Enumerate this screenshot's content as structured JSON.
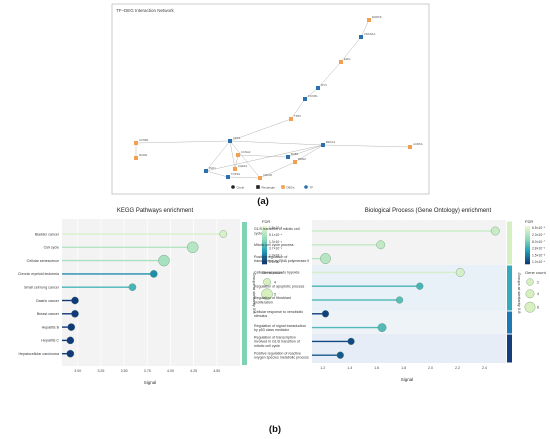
{
  "panel_a": {
    "title": "TF–DEG Interaction Network",
    "caption": "(a)",
    "legend": [
      {
        "label": "Circle",
        "shape": "circle-dark"
      },
      {
        "label": "Rectangle",
        "shape": "square-dark"
      },
      {
        "label": "DEGs",
        "shape": "square-orange"
      },
      {
        "label": "TF",
        "shape": "circle-blue"
      }
    ],
    "colors": {
      "deg": "#f0a050",
      "tf": "#2a6fb0",
      "edge": "#b5b5b5"
    },
    "nodes": [
      {
        "id": "n1",
        "label": "MAPK9",
        "type": "deg"
      },
      {
        "id": "n2",
        "label": "CDKN1A",
        "type": "tf"
      },
      {
        "id": "n3",
        "label": "E2F1",
        "type": "deg"
      },
      {
        "id": "n4",
        "label": "MYC",
        "type": "tf"
      },
      {
        "id": "n5",
        "label": "FOXM1",
        "type": "tf"
      },
      {
        "id": "n6",
        "label": "TP53",
        "type": "deg"
      },
      {
        "id": "n7",
        "label": "CDK1",
        "type": "tf"
      },
      {
        "id": "n8",
        "label": "CCNB1",
        "type": "deg"
      },
      {
        "id": "n9",
        "label": "MCM2",
        "type": "deg"
      },
      {
        "id": "n10",
        "label": "BRCA1",
        "type": "tf"
      },
      {
        "id": "n11",
        "label": "AURKA",
        "type": "deg"
      },
      {
        "id": "n12",
        "label": "CCNA2",
        "type": "deg"
      },
      {
        "id": "n13",
        "label": "PLK1",
        "type": "tf"
      },
      {
        "id": "n14",
        "label": "CHEK1",
        "type": "deg"
      },
      {
        "id": "n15",
        "label": "TOP2A",
        "type": "tf"
      },
      {
        "id": "n16",
        "label": "BUB1",
        "type": "tf"
      },
      {
        "id": "n17",
        "label": "CDC20",
        "type": "deg"
      },
      {
        "id": "n18",
        "label": "RRM2",
        "type": "deg"
      }
    ]
  },
  "panel_b_caption": "(b)",
  "chart_data": [
    {
      "type": "scatter",
      "title": "KEGG Pathways enrichment",
      "xlabel": "Signal",
      "xlim": [
        2.83,
        4.75
      ],
      "xticks": [
        "3.00",
        "3.25",
        "3.50",
        "3.75",
        "4.00",
        "4.25",
        "4.50"
      ],
      "categories": [
        "Bladder cancer",
        "Cell cycle",
        "Cellular senescence",
        "Chronic myeloid leukemia",
        "Small cell lung cancer",
        "Gastric cancer",
        "Breast cancer",
        "Hepatitis B",
        "Hepatitis C",
        "Hepatocellular carcinoma"
      ],
      "signal": [
        4.57,
        4.24,
        3.93,
        3.82,
        3.59,
        2.97,
        2.97,
        2.93,
        2.92,
        2.92
      ],
      "gene_count": [
        4,
        5,
        5,
        4,
        4,
        4,
        4,
        4,
        4,
        4
      ],
      "fdr_level": [
        0.06,
        0.2,
        0.25,
        0.72,
        0.55,
        1.0,
        1.0,
        1.0,
        1.0,
        1.0
      ],
      "legend_fdr": {
        "title": "FDR",
        "labels": [
          "1.9×10⁻⁴",
          "5.1×10⁻⁴",
          "1.3×10⁻³",
          "3.7×10⁻³",
          "1.0×10⁻²",
          "2.6×10⁻²"
        ]
      },
      "legend_size": {
        "title": "Gene count",
        "labels": [
          "4",
          "5"
        ]
      },
      "group_label": "Groups at similarity 0.8"
    },
    {
      "type": "scatter",
      "title": "Biological Process (Gene Ontology) enrichment",
      "xlabel": "Signal",
      "xlim": [
        1.12,
        2.56
      ],
      "xticks": [
        "1.2",
        "1.4",
        "1.6",
        "1.8",
        "2.0",
        "2.2",
        "2.4"
      ],
      "categories": [
        "G1/S transition of mitotic cell cycle",
        "Mitotic cell cycle process",
        "Positive regulation of transcription by RNA polymerase II",
        "Cellular response to hypoxia",
        "Regulation of apoptotic process",
        "Regulation of fibroblast proliferation",
        "Cellular response to xenobiotic stimulus",
        "Regulation of signal transduction by p53 class mediator",
        "Regulation of transcription involved in G1/S transition of mitotic cell cycle",
        "Positive regulation of reactive oxygen species metabolic process"
      ],
      "signal": [
        2.48,
        1.63,
        1.22,
        2.22,
        1.92,
        1.77,
        1.22,
        1.64,
        1.41,
        1.33
      ],
      "gene_count": [
        4,
        4,
        6,
        4,
        2,
        2,
        2,
        4,
        2,
        2
      ],
      "fdr_level": [
        0.12,
        0.15,
        0.2,
        0.08,
        0.55,
        0.5,
        0.98,
        0.52,
        0.95,
        0.9
      ],
      "legend_fdr": {
        "title": "FDR",
        "labels": [
          "6.5×10⁻⁸",
          "2.3×10⁻⁷",
          "8.0×10⁻⁷",
          "2.8×10⁻⁶",
          "1.5×10⁻⁵",
          "1.0×10⁻⁴"
        ]
      },
      "legend_size": {
        "title": "Gene count",
        "labels": [
          "2",
          "4",
          "6"
        ]
      },
      "group_label": "Groups at similarity 0.8"
    }
  ]
}
